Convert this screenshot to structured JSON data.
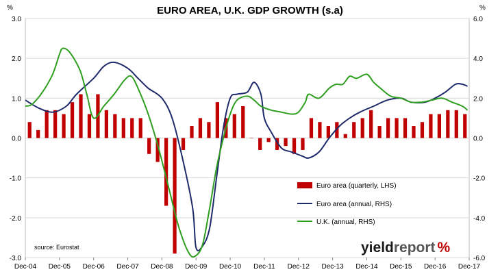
{
  "chart_data": {
    "type": "bar+line",
    "title": "EURO AREA, U.K. GDP GROWTH (s.a)",
    "left_axis": {
      "unit": "%",
      "ylim": [
        -3.0,
        3.0
      ],
      "ticks": [
        "3.0",
        "2.0",
        "1.0",
        "0.0",
        "-1.0",
        "-2.0",
        "-3.0"
      ]
    },
    "right_axis": {
      "unit": "%",
      "ylim": [
        -6.0,
        6.0
      ],
      "ticks": [
        "6.0",
        "4.0",
        "2.0",
        "0.0",
        "-2.0",
        "-4.0",
        "-6.0"
      ]
    },
    "x_ticks": [
      "Dec-04",
      "Dec-05",
      "Dec-06",
      "Dec-07",
      "Dec-08",
      "Dec-09",
      "Dec-10",
      "Dec-11",
      "Dec-12",
      "Dec-13",
      "Dec-14",
      "Dec-15",
      "Dec-16",
      "Dec-17"
    ],
    "colors": {
      "bars": "#c00000",
      "euro_line": "#1f2a6b",
      "uk_line": "#2e9e1f"
    },
    "series": [
      {
        "name": "Euro area (quarterly, LHS)",
        "kind": "bar",
        "axis": "left",
        "values": [
          0.4,
          0.2,
          0.7,
          0.7,
          0.6,
          0.9,
          1.1,
          0.6,
          1.1,
          0.7,
          0.6,
          0.5,
          0.5,
          0.5,
          -0.4,
          -0.6,
          -1.7,
          -2.9,
          -0.3,
          0.3,
          0.5,
          0.4,
          0.9,
          0.5,
          0.6,
          0.8,
          0.0,
          -0.3,
          -0.1,
          -0.3,
          -0.2,
          -0.4,
          -0.3,
          0.5,
          0.4,
          0.3,
          0.4,
          0.1,
          0.4,
          0.5,
          0.7,
          0.3,
          0.5,
          0.5,
          0.5,
          0.3,
          0.4,
          0.6,
          0.6,
          0.7,
          0.7,
          0.6
        ]
      },
      {
        "name": "Euro area (annual, RHS)",
        "kind": "line",
        "axis": "right",
        "points": [
          [
            0.0,
            1.9
          ],
          [
            0.4,
            1.5
          ],
          [
            0.8,
            1.3
          ],
          [
            1.2,
            1.6
          ],
          [
            1.5,
            2.2
          ],
          [
            2.0,
            3.0
          ],
          [
            2.3,
            3.6
          ],
          [
            2.6,
            3.8
          ],
          [
            3.0,
            3.5
          ],
          [
            3.3,
            3.0
          ],
          [
            3.6,
            2.5
          ],
          [
            4.0,
            2.0
          ],
          [
            4.3,
            1.0
          ],
          [
            4.6,
            -1.0
          ],
          [
            4.9,
            -3.5
          ],
          [
            5.0,
            -5.5
          ],
          [
            5.2,
            -5.4
          ],
          [
            5.4,
            -4.5
          ],
          [
            5.6,
            -2.0
          ],
          [
            5.8,
            0.5
          ],
          [
            6.0,
            2.0
          ],
          [
            6.2,
            2.2
          ],
          [
            6.5,
            2.3
          ],
          [
            6.7,
            2.8
          ],
          [
            6.9,
            2.2
          ],
          [
            7.0,
            1.0
          ],
          [
            7.2,
            0.3
          ],
          [
            7.5,
            -0.5
          ],
          [
            7.8,
            -0.7
          ],
          [
            8.1,
            -0.9
          ],
          [
            8.3,
            -1.0
          ],
          [
            8.6,
            -0.7
          ],
          [
            8.9,
            0.0
          ],
          [
            9.2,
            0.6
          ],
          [
            9.5,
            1.0
          ],
          [
            9.8,
            1.3
          ],
          [
            10.2,
            1.6
          ],
          [
            10.6,
            1.9
          ],
          [
            11.0,
            2.0
          ],
          [
            11.3,
            1.8
          ],
          [
            11.7,
            1.8
          ],
          [
            12.0,
            2.0
          ],
          [
            12.3,
            2.3
          ],
          [
            12.6,
            2.7
          ],
          [
            12.8,
            2.7
          ],
          [
            12.95,
            2.6
          ]
        ]
      },
      {
        "name": "U.K. (annual, RHS)",
        "kind": "line",
        "axis": "right",
        "points": [
          [
            0.0,
            1.6
          ],
          [
            0.2,
            1.7
          ],
          [
            0.5,
            2.3
          ],
          [
            0.8,
            3.2
          ],
          [
            1.0,
            4.2
          ],
          [
            1.1,
            4.5
          ],
          [
            1.3,
            4.3
          ],
          [
            1.6,
            3.4
          ],
          [
            1.8,
            2.2
          ],
          [
            2.0,
            1.0
          ],
          [
            2.3,
            1.6
          ],
          [
            2.6,
            2.2
          ],
          [
            2.9,
            2.9
          ],
          [
            3.1,
            3.1
          ],
          [
            3.3,
            2.5
          ],
          [
            3.6,
            1.2
          ],
          [
            3.9,
            -0.5
          ],
          [
            4.2,
            -2.5
          ],
          [
            4.5,
            -4.5
          ],
          [
            4.8,
            -5.8
          ],
          [
            5.0,
            -5.9
          ],
          [
            5.2,
            -5.3
          ],
          [
            5.4,
            -3.5
          ],
          [
            5.6,
            -1.5
          ],
          [
            5.8,
            0.0
          ],
          [
            6.0,
            1.2
          ],
          [
            6.2,
            1.9
          ],
          [
            6.5,
            2.1
          ],
          [
            6.7,
            1.9
          ],
          [
            6.9,
            1.6
          ],
          [
            7.2,
            1.4
          ],
          [
            7.5,
            1.3
          ],
          [
            7.8,
            1.2
          ],
          [
            8.0,
            1.3
          ],
          [
            8.2,
            1.8
          ],
          [
            8.3,
            2.2
          ],
          [
            8.6,
            2.0
          ],
          [
            8.9,
            2.5
          ],
          [
            9.1,
            2.7
          ],
          [
            9.3,
            2.7
          ],
          [
            9.5,
            3.1
          ],
          [
            9.7,
            3.0
          ],
          [
            10.0,
            3.2
          ],
          [
            10.2,
            2.8
          ],
          [
            10.4,
            2.5
          ],
          [
            10.7,
            2.1
          ],
          [
            11.0,
            2.0
          ],
          [
            11.3,
            1.8
          ],
          [
            11.6,
            1.8
          ],
          [
            11.9,
            1.9
          ],
          [
            12.2,
            2.0
          ],
          [
            12.5,
            1.8
          ],
          [
            12.8,
            1.6
          ],
          [
            12.95,
            1.4
          ]
        ]
      }
    ],
    "legend": {
      "placement": "center-right"
    }
  },
  "source_text": "source: Eurostat",
  "brand": {
    "part1": "yield",
    "part2": "report",
    "mark": "%"
  }
}
